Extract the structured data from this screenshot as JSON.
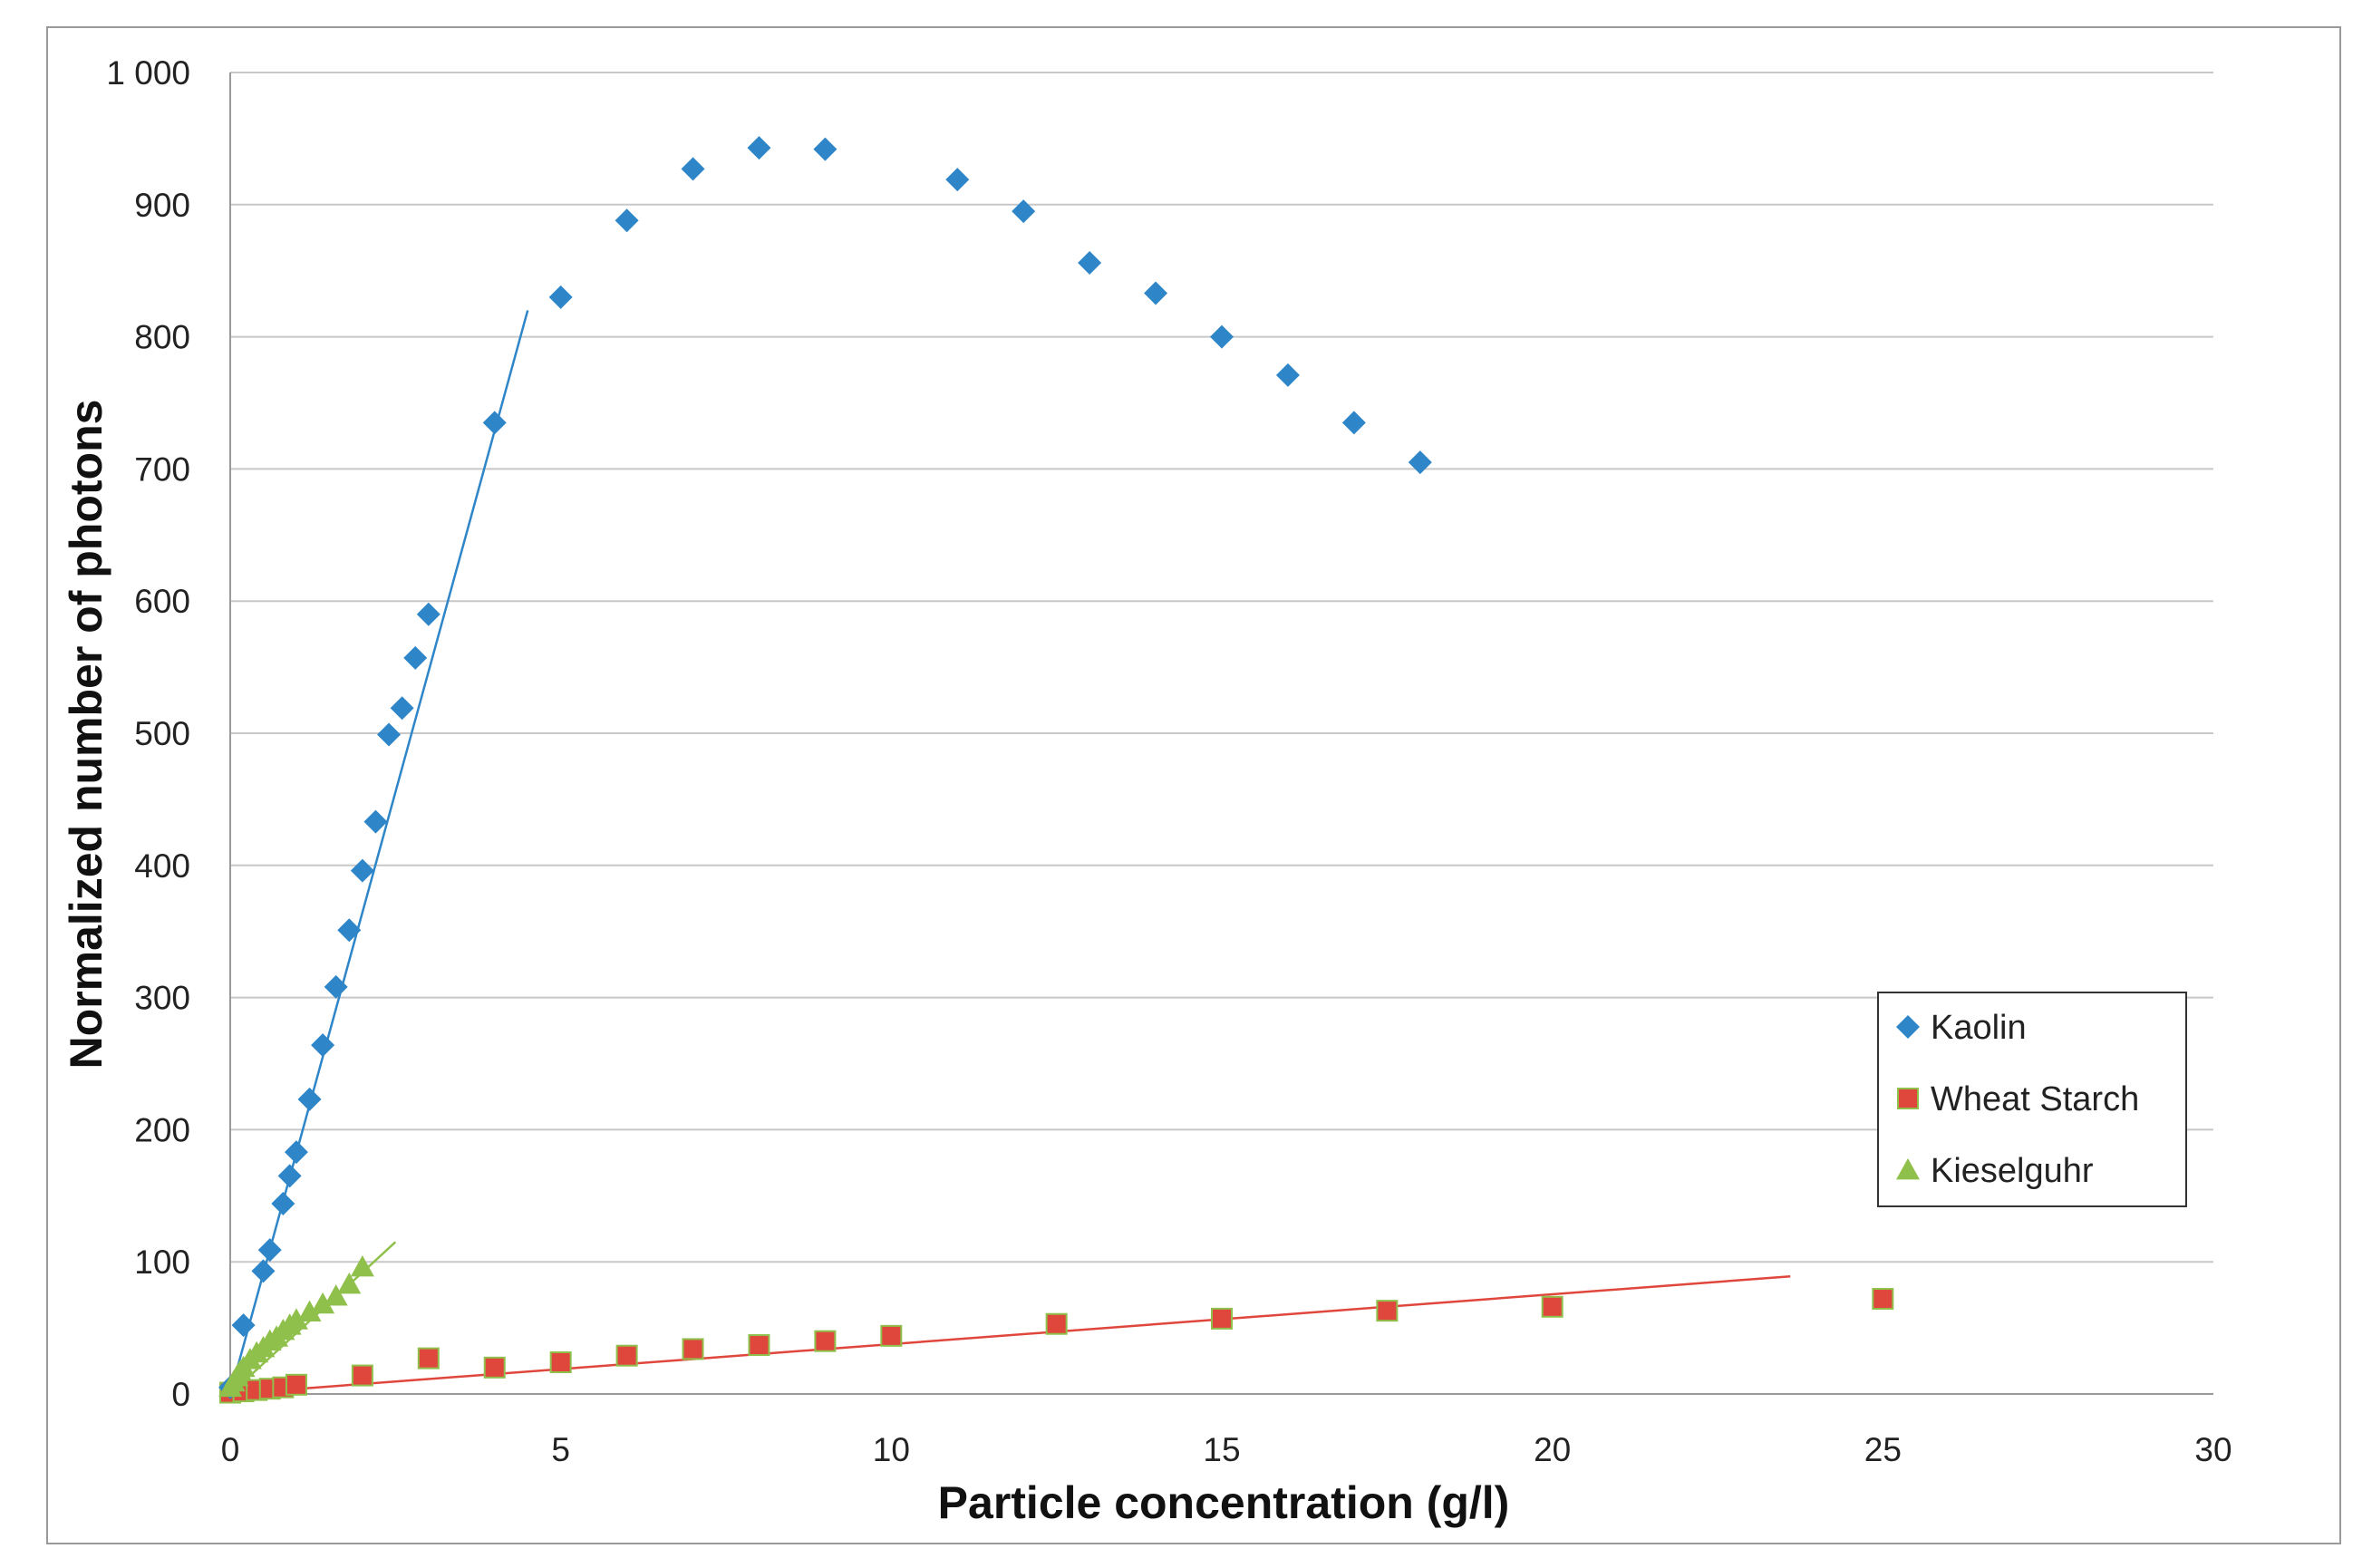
{
  "chart_data": {
    "type": "scatter",
    "title": "",
    "xlabel": "Particle concentration (g/l)",
    "ylabel": "Normalized number of photons",
    "xlim": [
      0,
      30
    ],
    "ylim": [
      0,
      1000
    ],
    "x_ticks": [
      0,
      5,
      10,
      15,
      20,
      25,
      30
    ],
    "x_tick_labels": [
      "0",
      "5",
      "10",
      "15",
      "20",
      "25",
      "30"
    ],
    "y_ticks": [
      0,
      100,
      200,
      300,
      400,
      500,
      600,
      700,
      800,
      900,
      1000
    ],
    "y_tick_labels": [
      "0",
      "100",
      "200",
      "300",
      "400",
      "500",
      "600",
      "700",
      "800",
      "900",
      "1 000"
    ],
    "grid": "horizontal",
    "legend_position": "right",
    "series": [
      {
        "name": "Kaolin",
        "marker": "diamond",
        "color": "#2e86c8",
        "x": [
          0,
          0.2,
          0.5,
          0.6,
          0.8,
          0.9,
          1.0,
          1.2,
          1.4,
          1.6,
          1.8,
          2.0,
          2.2,
          2.4,
          2.6,
          2.8,
          3.0,
          4,
          5,
          6,
          7,
          8,
          9,
          11,
          12,
          13,
          14,
          15,
          16,
          17,
          18
        ],
        "y": [
          5,
          52,
          93,
          109,
          144,
          165,
          183,
          223,
          264,
          308,
          351,
          396,
          433,
          499,
          519,
          557,
          590,
          735,
          830,
          888,
          927,
          943,
          942,
          919,
          895,
          856,
          833,
          800,
          771,
          735,
          705
        ],
        "trendline": {
          "x": [
            0,
            4.5
          ],
          "y": [
            0,
            820
          ]
        }
      },
      {
        "name": "Wheat Starch",
        "marker": "square",
        "color": "#e0473c",
        "x": [
          0,
          0.2,
          0.4,
          0.6,
          0.8,
          1,
          2,
          3,
          4,
          5,
          6,
          7,
          8,
          9,
          10,
          12.5,
          15,
          17.5,
          20,
          25
        ],
        "y": [
          1,
          2,
          3,
          4,
          5,
          7,
          14,
          27,
          20,
          24,
          29,
          34,
          37,
          40,
          44,
          53,
          57,
          63,
          66,
          72
        ],
        "trendline": {
          "x": [
            0,
            23.6
          ],
          "y": [
            0,
            89
          ]
        }
      },
      {
        "name": "Kieselguhr",
        "marker": "triangle",
        "color": "#8fc04b",
        "x": [
          0,
          0.05,
          0.1,
          0.15,
          0.2,
          0.3,
          0.4,
          0.5,
          0.6,
          0.7,
          0.8,
          0.9,
          1.0,
          1.2,
          1.4,
          1.6,
          1.8,
          2.0
        ],
        "y": [
          5,
          9,
          13,
          17,
          20,
          26,
          31,
          35,
          40,
          43,
          48,
          52,
          56,
          62,
          68,
          74,
          83,
          96
        ],
        "trendline": {
          "x": [
            0,
            2.5
          ],
          "y": [
            0,
            115
          ]
        }
      }
    ]
  }
}
